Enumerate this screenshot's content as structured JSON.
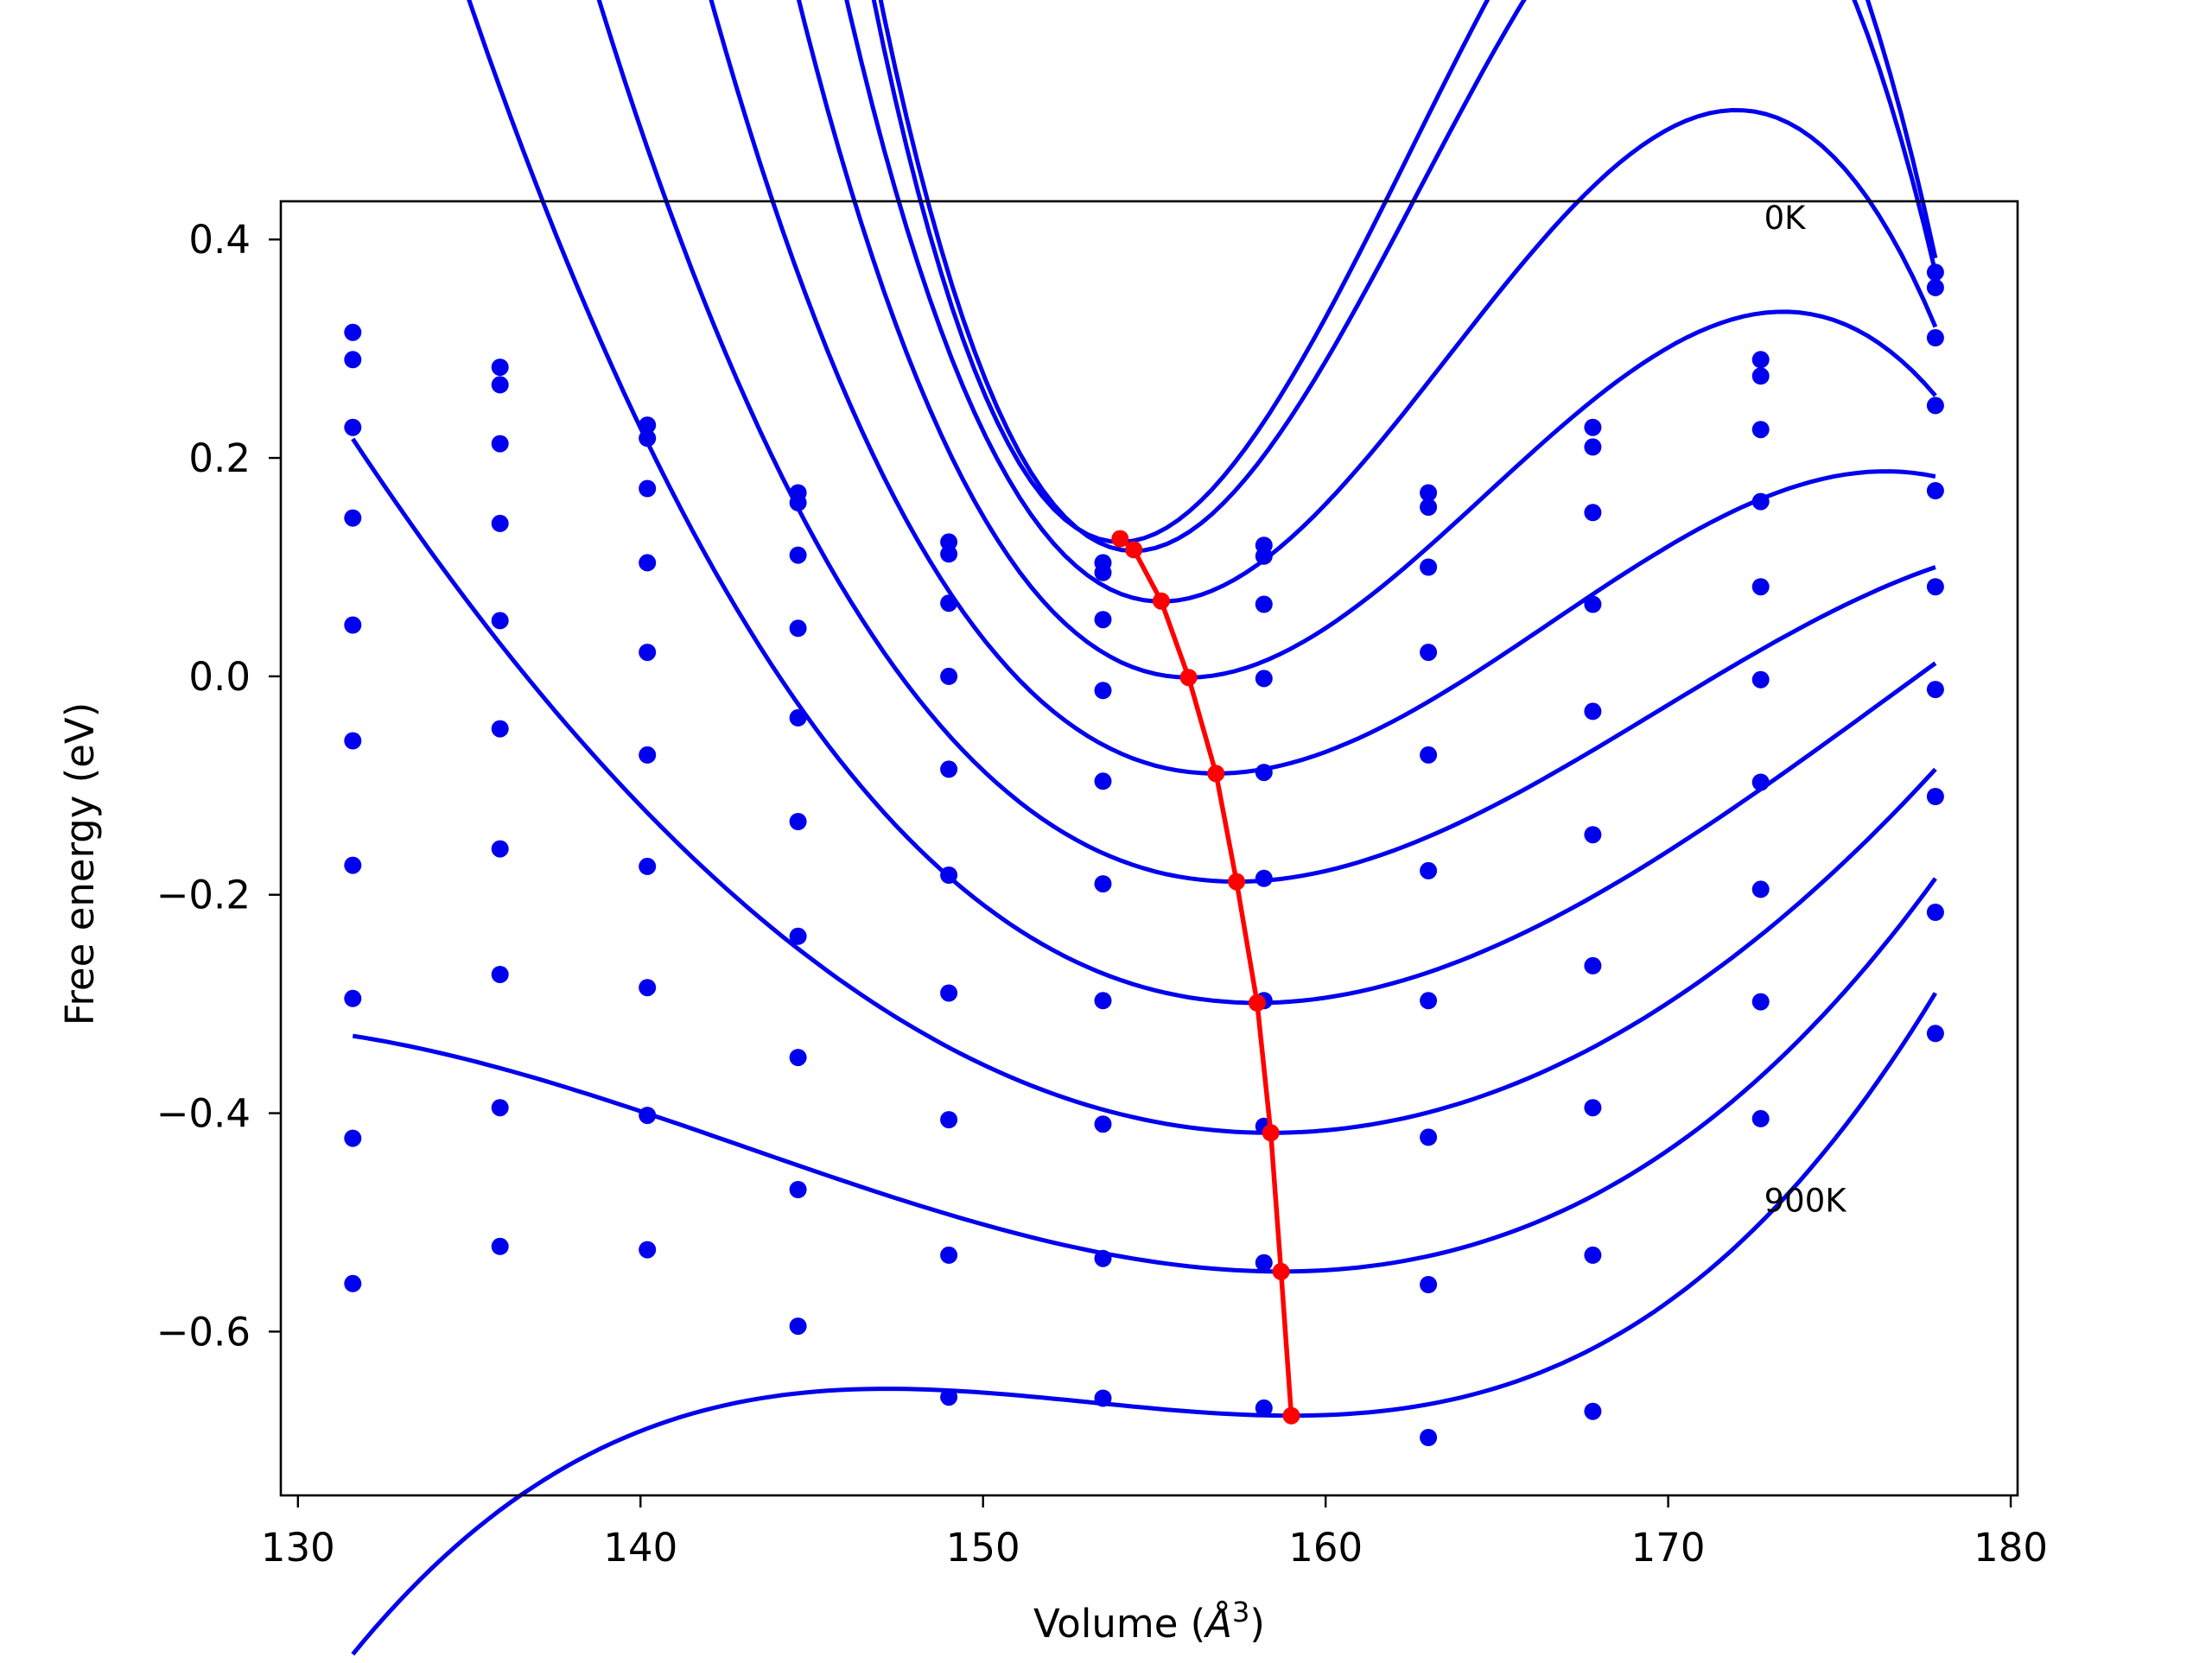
{
  "chart_data": {
    "type": "line",
    "title": "",
    "xlabel": "Volume ($\\AA^3$)",
    "xlabel_display": {
      "prefix": "Volume (",
      "symbol": "Å",
      "power": "3",
      "suffix": ")"
    },
    "ylabel": "Free energy (eV)",
    "xlim": [
      129.5,
      180.2
    ],
    "ylim": [
      -0.75,
      0.435
    ],
    "xticks": [
      130,
      140,
      150,
      160,
      170,
      180
    ],
    "xtick_labels": [
      "130",
      "140",
      "150",
      "160",
      "170",
      "180"
    ],
    "yticks": [
      -0.6,
      -0.4,
      -0.2,
      0.0,
      0.2,
      0.4
    ],
    "ytick_labels": [
      "−0.6",
      "−0.4",
      "−0.2",
      "0.0",
      "0.2",
      "0.4"
    ],
    "grid": false,
    "annotations": [
      {
        "text": "0K",
        "x": 172.8,
        "y": 0.42
      },
      {
        "text": "900K",
        "x": 172.8,
        "y": -0.48
      }
    ],
    "colors": {
      "fit": "#0000ee",
      "points": "#0000ee",
      "minimum": "#ff0000",
      "axes": "#000000"
    },
    "volumes": [
      131.6,
      135.9,
      140.2,
      144.6,
      149.0,
      153.5,
      158.2,
      163.0,
      167.8,
      172.7,
      177.8
    ],
    "curve_range": [
      131.6,
      177.8
    ],
    "series": [
      {
        "points": [
          0.315,
          0.283,
          0.23,
          0.168,
          0.123,
          0.104,
          0.12,
          0.168,
          0.228,
          0.29,
          0.37
        ],
        "fit": [
          -0.000295,
          0.123,
          154.0,
          0.383
        ]
      },
      {
        "points": [
          0.29,
          0.267,
          0.218,
          0.159,
          0.112,
          0.095,
          0.11,
          0.155,
          0.21,
          0.275,
          0.356
        ],
        "fit": [
          -0.000285,
          0.1148,
          154.4,
          0.37
        ]
      },
      {
        "points": [
          0.228,
          0.213,
          0.172,
          0.111,
          0.067,
          0.052,
          0.066,
          0.1,
          0.15,
          0.226,
          0.31
        ],
        "fit": [
          -0.00019,
          0.0685,
          155.2,
          0.32
        ]
      },
      {
        "points": [
          0.145,
          0.14,
          0.104,
          0.044,
          0.0,
          -0.013,
          -0.002,
          0.022,
          0.066,
          0.16,
          0.248
        ],
        "fit": [
          -0.000128,
          -0.001,
          156.0,
          0.257
        ]
      },
      {
        "points": [
          0.047,
          0.051,
          0.022,
          -0.038,
          -0.085,
          -0.096,
          -0.088,
          -0.072,
          -0.032,
          0.082,
          0.17
        ],
        "fit": [
          -7.4e-05,
          -0.089,
          156.8,
          0.183
        ]
      },
      {
        "points": [
          -0.059,
          -0.048,
          -0.072,
          -0.133,
          -0.182,
          -0.19,
          -0.185,
          -0.178,
          -0.145,
          -0.003,
          0.082
        ],
        "fit": [
          -4.2e-05,
          -0.188,
          157.4,
          0.1
        ]
      },
      {
        "points": [
          -0.173,
          -0.158,
          -0.174,
          -0.238,
          -0.29,
          -0.297,
          -0.297,
          -0.297,
          -0.265,
          -0.097,
          -0.012
        ],
        "fit": [
          -2.2e-05,
          -0.299,
          158.0,
          0.012
        ]
      },
      {
        "points": [
          -0.295,
          -0.273,
          -0.285,
          -0.349,
          -0.406,
          -0.41,
          -0.412,
          -0.422,
          -0.395,
          -0.195,
          -0.11
        ],
        "fit": [
          0.0,
          -0.418,
          158.4,
          -0.085
        ]
      },
      {
        "points": [
          -0.423,
          -0.395,
          -0.402,
          -0.47,
          -0.53,
          -0.533,
          -0.537,
          -0.557,
          -0.53,
          -0.298,
          -0.216
        ],
        "fit": [
          1.5e-05,
          -0.545,
          158.7,
          -0.185
        ]
      },
      {
        "points": [
          -0.556,
          -0.522,
          -0.525,
          -0.595,
          -0.66,
          -0.661,
          -0.67,
          -0.697,
          -0.673,
          -0.405,
          -0.327
        ],
        "fit": [
          3e-05,
          -0.677,
          159.0,
          -0.29
        ]
      }
    ],
    "minimum_path": {
      "x": [
        154.0,
        154.4,
        155.2,
        156.0,
        156.8,
        157.4,
        158.0,
        158.4,
        158.7,
        159.0
      ],
      "y": [
        0.126,
        0.116,
        0.069,
        -0.001,
        -0.089,
        -0.188,
        -0.299,
        -0.418,
        -0.545,
        -0.677
      ]
    }
  }
}
